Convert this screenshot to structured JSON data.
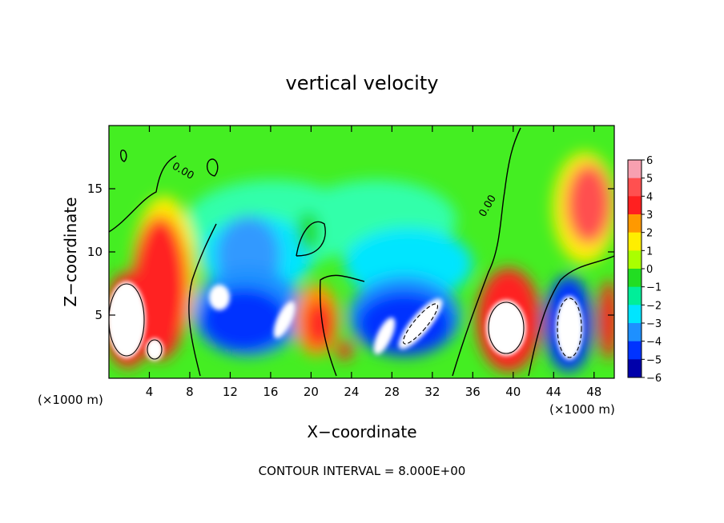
{
  "chart_data": {
    "type": "heatmap",
    "title": "vertical velocity",
    "xlabel": "X−coordinate",
    "ylabel": "Z−coordinate",
    "x_unit_left": "(×1000 m)",
    "x_unit_right": "(×1000 m)",
    "footer": "CONTOUR INTERVAL = 8.000E+00",
    "contour_label": "0.00",
    "xlim": [
      0,
      50
    ],
    "ylim": [
      0,
      20
    ],
    "xticks": [
      4,
      8,
      12,
      16,
      20,
      24,
      28,
      32,
      36,
      40,
      44,
      48
    ],
    "xtick_labels": [
      "4",
      "8",
      "12",
      "16",
      "20",
      "24",
      "28",
      "32",
      "36",
      "40",
      "44",
      "48"
    ],
    "yticks": [
      5,
      10,
      15
    ],
    "ytick_labels": [
      "5",
      "10",
      "15"
    ],
    "colorbar": {
      "levels": [
        6,
        5,
        4,
        3,
        2,
        1,
        0,
        -1,
        -2,
        -3,
        -4,
        -5,
        -6
      ],
      "labels": [
        "6",
        "5",
        "4",
        "3",
        "2",
        "1",
        "0",
        "−1",
        "−2",
        "−3",
        "−4",
        "−5",
        "−6"
      ],
      "colors": [
        "#f7a0b0",
        "#ff5050",
        "#ff2020",
        "#ff9900",
        "#ffee00",
        "#aaff00",
        "#22dd22",
        "#00ee99",
        "#00e5ff",
        "#1e90ff",
        "#0033ff",
        "#0000aa",
        "#7a00a8"
      ]
    },
    "grid": false,
    "legend": "right",
    "features": [
      {
        "x": 2.5,
        "z": 5,
        "w": 1.8,
        "fill": "#ffffff"
      },
      {
        "x": 5.5,
        "z": 7,
        "w": 4.2,
        "fill": "#ff2020"
      },
      {
        "x": 4.5,
        "z": 2.2,
        "w": 1.5,
        "fill": "#ffffff"
      },
      {
        "x": 11.5,
        "z": 5.8,
        "w": 1.0,
        "fill": "#ffffff"
      },
      {
        "x": 14,
        "z": 5,
        "w": 5,
        "fill": "#0033ff"
      },
      {
        "x": 17,
        "z": 5,
        "w": 1.2,
        "fill": "#ffffff"
      },
      {
        "x": 20.5,
        "z": 4.5,
        "w": 3,
        "fill": "#ff9900"
      },
      {
        "x": 23,
        "z": 2.4,
        "w": 1,
        "fill": "#ff2020"
      },
      {
        "x": 28,
        "z": 5,
        "w": 4,
        "fill": "#0033ff"
      },
      {
        "x": 31,
        "z": 4,
        "w": 2,
        "fill": "#ffffff"
      },
      {
        "x": 39.5,
        "z": 4.5,
        "w": 2.5,
        "fill": "#ffffff"
      },
      {
        "x": 45,
        "z": 3.5,
        "w": 2,
        "fill": "#ffffff"
      },
      {
        "x": 47.5,
        "z": 14,
        "w": 4,
        "fill": "#ff5050"
      }
    ]
  }
}
